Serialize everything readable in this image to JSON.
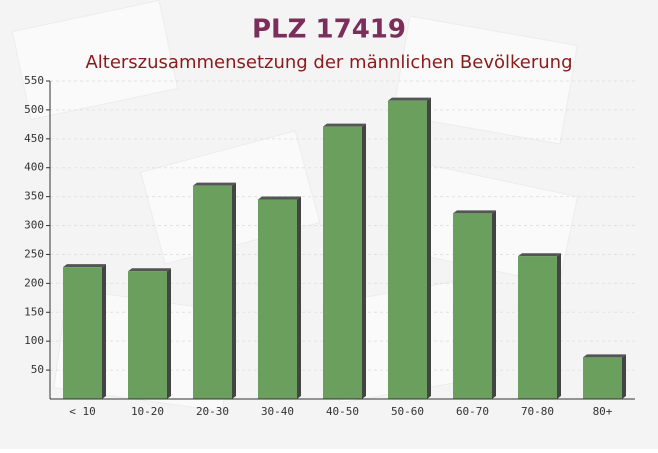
{
  "chart_data": {
    "type": "bar",
    "title": "PLZ 17419",
    "subtitle": "Alterszusammensetzung der männlichen Bevölkerung",
    "categories": [
      "< 10",
      "10-20",
      "20-30",
      "30-40",
      "40-50",
      "50-60",
      "60-70",
      "70-80",
      "80+"
    ],
    "values": [
      228,
      221,
      369,
      345,
      471,
      516,
      321,
      247,
      72
    ],
    "color": "#6a9f5e",
    "ylim": [
      0,
      550
    ],
    "yticks": [
      50,
      100,
      150,
      200,
      250,
      300,
      350,
      400,
      450,
      500,
      550
    ],
    "grid": true
  }
}
